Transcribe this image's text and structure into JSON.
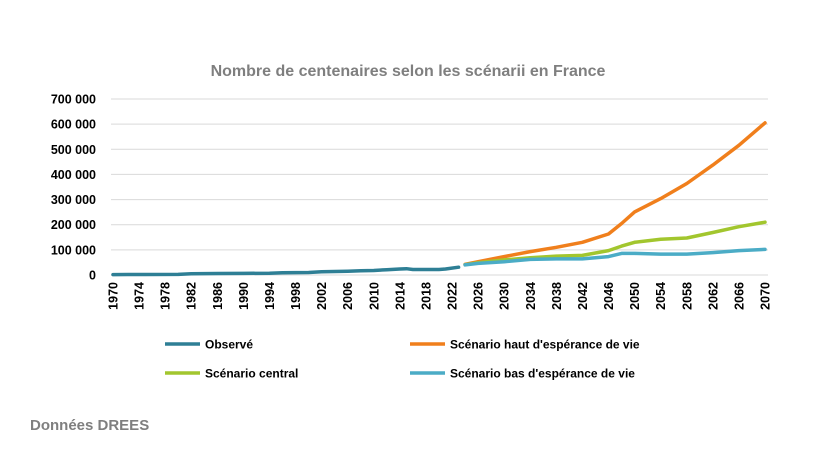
{
  "chart_data": {
    "type": "line",
    "title": "Nombre de centenaires selon les scénarii en France",
    "xlabel": "",
    "ylabel": "",
    "xlim": [
      1970,
      2070
    ],
    "ylim": [
      0,
      700000
    ],
    "grid": true,
    "legend_position": "bottom",
    "y_ticks": [
      "0",
      "100 000",
      "200 000",
      "300 000",
      "400 000",
      "500 000",
      "600 000",
      "700 000"
    ],
    "x_ticks": [
      "1970",
      "1974",
      "1978",
      "1982",
      "1986",
      "1990",
      "1994",
      "1998",
      "2002",
      "2006",
      "2010",
      "2014",
      "2018",
      "2022",
      "2026",
      "2030",
      "2034",
      "2038",
      "2042",
      "2046",
      "2050",
      "2054",
      "2058",
      "2062",
      "2066",
      "2070"
    ],
    "series": [
      {
        "name": "Observé",
        "color": "#2e7f95",
        "x": [
          1970,
          1975,
          1980,
          1982,
          1986,
          1990,
          1994,
          1996,
          2000,
          2002,
          2006,
          2008,
          2010,
          2012,
          2014,
          2015,
          2016,
          2018,
          2020,
          2021,
          2023
        ],
        "y": [
          1500,
          2000,
          2500,
          5000,
          6000,
          6500,
          7000,
          9000,
          10000,
          13000,
          15000,
          17000,
          18000,
          21000,
          24000,
          25000,
          22000,
          22000,
          22000,
          24000,
          31000
        ]
      },
      {
        "name": "Scénario haut d'espérance de vie",
        "color": "#f07f1c",
        "x": [
          2024,
          2026,
          2030,
          2034,
          2038,
          2042,
          2046,
          2048,
          2050,
          2054,
          2058,
          2062,
          2066,
          2070
        ],
        "y": [
          42000,
          53000,
          73000,
          93000,
          110000,
          130000,
          163000,
          205000,
          251000,
          304000,
          364000,
          437000,
          516000,
          605000
        ]
      },
      {
        "name": "Scénario central",
        "color": "#a2c62e",
        "x": [
          2024,
          2026,
          2030,
          2034,
          2038,
          2042,
          2046,
          2048,
          2050,
          2054,
          2058,
          2062,
          2066,
          2070
        ],
        "y": [
          41000,
          49000,
          60000,
          69000,
          75000,
          78000,
          97000,
          115000,
          130000,
          142000,
          147000,
          169000,
          192000,
          210000
        ]
      },
      {
        "name": "Scénario bas d'espérance de vie",
        "color": "#4bacc6",
        "x": [
          2024,
          2026,
          2030,
          2034,
          2038,
          2042,
          2046,
          2048,
          2050,
          2054,
          2058,
          2062,
          2066,
          2070
        ],
        "y": [
          40000,
          46000,
          53000,
          62000,
          64000,
          64000,
          73000,
          86000,
          86000,
          83000,
          83000,
          89000,
          97000,
          102000
        ]
      }
    ]
  },
  "source": "Données DREES"
}
